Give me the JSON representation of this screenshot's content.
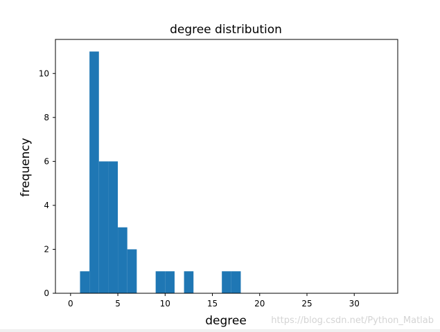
{
  "chart_data": {
    "type": "bar",
    "title": "degree distribution",
    "xlabel": "degree",
    "ylabel": "frequency",
    "xlim": [
      -1.6,
      34.6
    ],
    "ylim": [
      0,
      11.55
    ],
    "xticks": [
      0,
      5,
      10,
      15,
      20,
      25,
      30
    ],
    "yticks": [
      0,
      2,
      4,
      6,
      8,
      10
    ],
    "bin_width": 1,
    "bins": [
      {
        "x0": 1,
        "x1": 2,
        "value": 1
      },
      {
        "x0": 2,
        "x1": 3,
        "value": 11
      },
      {
        "x0": 3,
        "x1": 4,
        "value": 6
      },
      {
        "x0": 4,
        "x1": 5,
        "value": 6
      },
      {
        "x0": 5,
        "x1": 6,
        "value": 3
      },
      {
        "x0": 6,
        "x1": 7,
        "value": 2
      },
      {
        "x0": 9,
        "x1": 10,
        "value": 1
      },
      {
        "x0": 10,
        "x1": 11,
        "value": 1
      },
      {
        "x0": 12,
        "x1": 13,
        "value": 1
      },
      {
        "x0": 16,
        "x1": 17,
        "value": 1
      },
      {
        "x0": 17,
        "x1": 18,
        "value": 1
      }
    ],
    "bar_color": "#1f77b4",
    "grid": false,
    "legend": "none"
  },
  "watermark": "https://blog.csdn.net/Python_Matlab"
}
